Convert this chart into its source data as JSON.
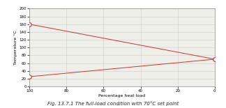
{
  "title": "Fig. 13.7.1 The full-load condition with 70°C set point",
  "xlabel": "Percentage heat load",
  "ylabel": "Temperature °C",
  "xlim": [
    100,
    0
  ],
  "ylim": [
    0,
    200
  ],
  "xticks": [
    100,
    80,
    60,
    40,
    20,
    0
  ],
  "yticks": [
    0,
    20,
    40,
    60,
    80,
    100,
    120,
    140,
    160,
    180,
    200
  ],
  "line1_x": [
    100,
    0
  ],
  "line1_y": [
    160,
    70
  ],
  "line2_x": [
    100,
    0
  ],
  "line2_y": [
    25,
    70
  ],
  "marker_color": "#cc2222",
  "line_color": "#cc3333",
  "point_A_x": 100,
  "point_A_y": 160,
  "point_B_x": 100,
  "point_B_y": 25,
  "point_C_x": 0,
  "point_C_y": 70,
  "marker_size": 4,
  "bg_color": "#efefea",
  "grid_color": "#cccccc",
  "title_fontsize": 5.0,
  "axis_label_fontsize": 4.5,
  "tick_fontsize": 4.0
}
